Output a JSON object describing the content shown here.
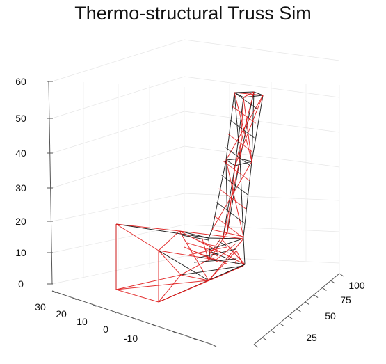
{
  "chart_data": {
    "type": "3d-line",
    "title": "Thermo-structural Truss Sim",
    "axes": {
      "x": {
        "ticks": [
          30,
          20,
          10,
          0,
          -10
        ]
      },
      "y": {
        "ticks": [
          25,
          50,
          75,
          100
        ]
      },
      "z": {
        "ticks": [
          0,
          10,
          20,
          30,
          40,
          50,
          60
        ]
      }
    },
    "grid": true,
    "series": [
      {
        "color": "#111111"
      },
      {
        "color": "#e01919"
      }
    ]
  }
}
